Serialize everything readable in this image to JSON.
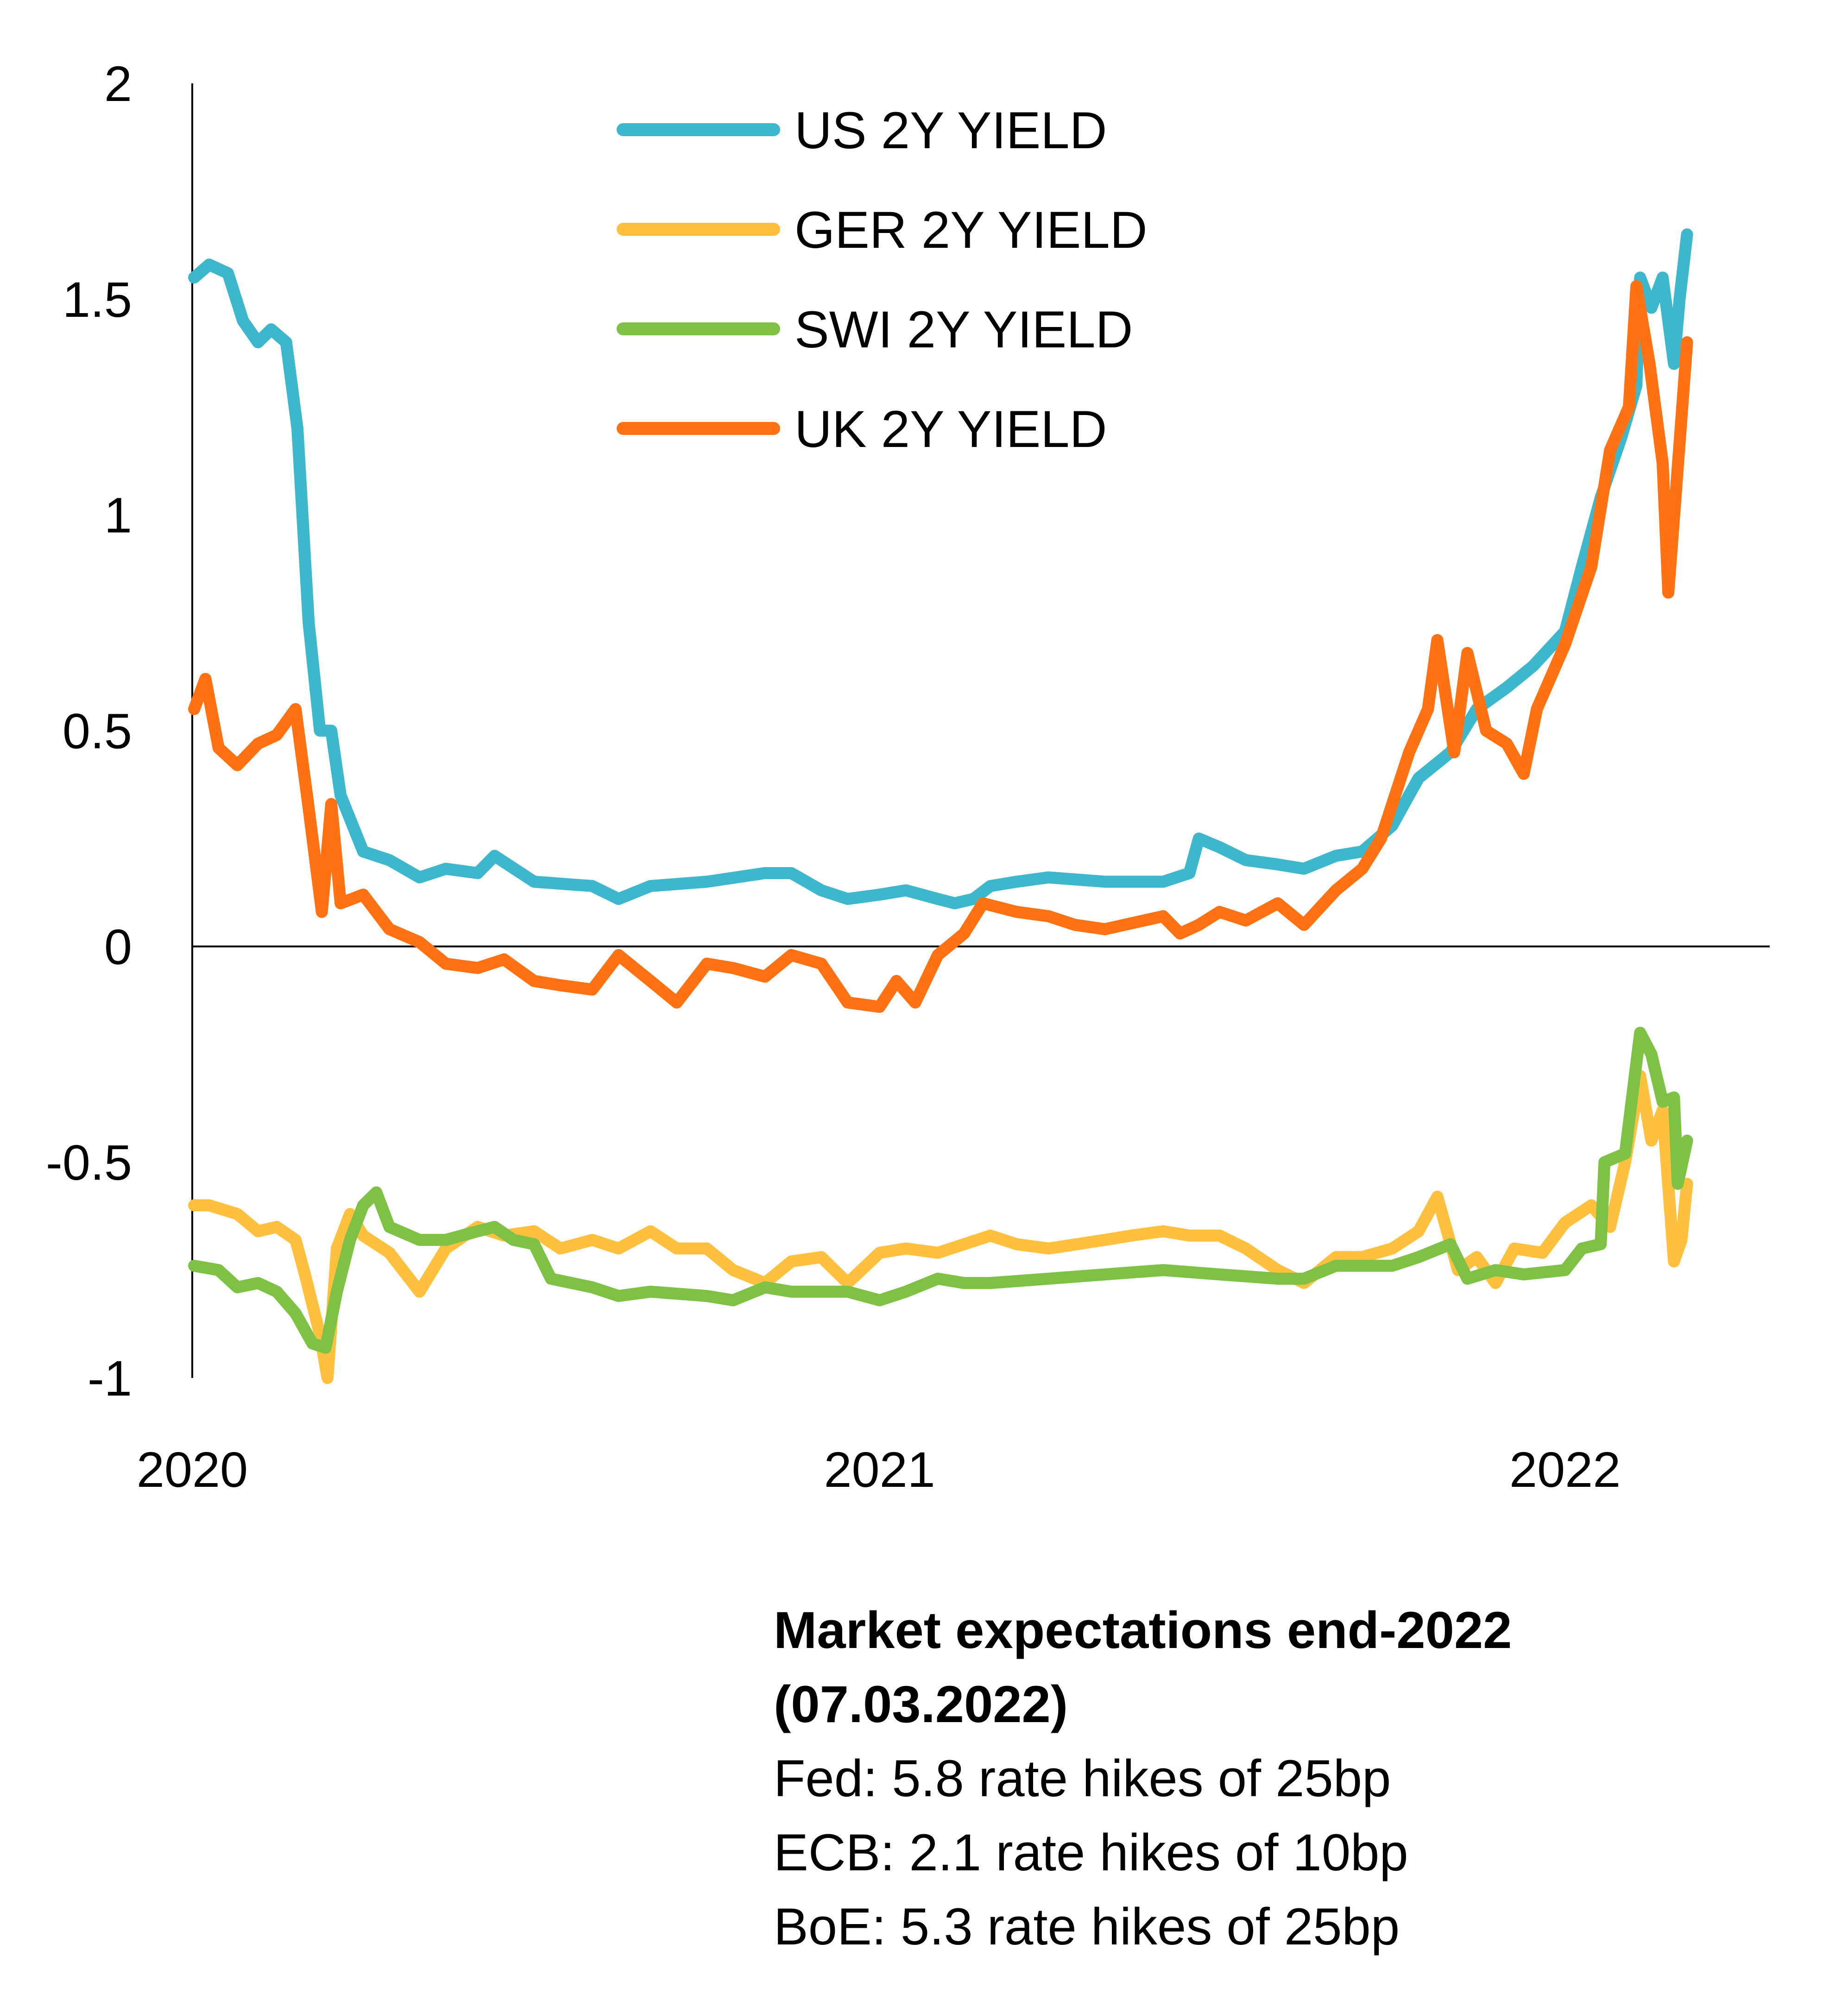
{
  "chart_data": {
    "type": "line",
    "title": "",
    "xlabel": "",
    "ylabel": "",
    "ylim": [
      -1,
      2
    ],
    "xlim": [
      "2020-01-01",
      "2022-04-20"
    ],
    "x_ticks": [
      {
        "label": "2020",
        "date": "2020-01-01"
      },
      {
        "label": "2021",
        "date": "2021-01-01"
      },
      {
        "label": "2022",
        "date": "2022-01-01"
      }
    ],
    "y_ticks": [
      {
        "label": "2",
        "value": 2
      },
      {
        "label": "1.5",
        "value": 1.5
      },
      {
        "label": "1",
        "value": 1
      },
      {
        "label": "0.5",
        "value": 0.5
      },
      {
        "label": "0",
        "value": 0
      },
      {
        "label": "-0.5",
        "value": -0.5
      },
      {
        "label": "-1",
        "value": -1
      }
    ],
    "grid": false,
    "legend_position": "top-center",
    "series": [
      {
        "name": "US 2Y YIELD",
        "color": "#3DB7CB",
        "points": [
          [
            "2020-01-02",
            1.55
          ],
          [
            "2020-01-10",
            1.58
          ],
          [
            "2020-01-20",
            1.56
          ],
          [
            "2020-01-28",
            1.45
          ],
          [
            "2020-02-05",
            1.4
          ],
          [
            "2020-02-12",
            1.43
          ],
          [
            "2020-02-20",
            1.4
          ],
          [
            "2020-02-26",
            1.2
          ],
          [
            "2020-03-03",
            0.75
          ],
          [
            "2020-03-09",
            0.5
          ],
          [
            "2020-03-15",
            0.5
          ],
          [
            "2020-03-20",
            0.35
          ],
          [
            "2020-04-01",
            0.22
          ],
          [
            "2020-04-15",
            0.2
          ],
          [
            "2020-05-01",
            0.16
          ],
          [
            "2020-05-15",
            0.18
          ],
          [
            "2020-06-01",
            0.17
          ],
          [
            "2020-06-10",
            0.21
          ],
          [
            "2020-07-01",
            0.15
          ],
          [
            "2020-08-01",
            0.14
          ],
          [
            "2020-08-15",
            0.11
          ],
          [
            "2020-09-01",
            0.14
          ],
          [
            "2020-10-01",
            0.15
          ],
          [
            "2020-11-01",
            0.17
          ],
          [
            "2020-11-15",
            0.17
          ],
          [
            "2020-12-01",
            0.13
          ],
          [
            "2020-12-15",
            0.11
          ],
          [
            "2021-01-01",
            0.12
          ],
          [
            "2021-01-15",
            0.13
          ],
          [
            "2021-02-01",
            0.11
          ],
          [
            "2021-02-10",
            0.1
          ],
          [
            "2021-02-20",
            0.11
          ],
          [
            "2021-03-01",
            0.14
          ],
          [
            "2021-03-15",
            0.15
          ],
          [
            "2021-04-01",
            0.16
          ],
          [
            "2021-05-01",
            0.15
          ],
          [
            "2021-06-01",
            0.15
          ],
          [
            "2021-06-15",
            0.17
          ],
          [
            "2021-06-20",
            0.25
          ],
          [
            "2021-07-01",
            0.23
          ],
          [
            "2021-07-15",
            0.2
          ],
          [
            "2021-08-01",
            0.19
          ],
          [
            "2021-08-15",
            0.18
          ],
          [
            "2021-09-01",
            0.21
          ],
          [
            "2021-09-15",
            0.22
          ],
          [
            "2021-10-01",
            0.28
          ],
          [
            "2021-10-15",
            0.39
          ],
          [
            "2021-11-01",
            0.45
          ],
          [
            "2021-11-15",
            0.55
          ],
          [
            "2021-12-01",
            0.6
          ],
          [
            "2021-12-15",
            0.65
          ],
          [
            "2022-01-01",
            0.73
          ],
          [
            "2022-01-10",
            0.88
          ],
          [
            "2022-01-20",
            1.04
          ],
          [
            "2022-01-31",
            1.18
          ],
          [
            "2022-02-08",
            1.3
          ],
          [
            "2022-02-10",
            1.55
          ],
          [
            "2022-02-16",
            1.48
          ],
          [
            "2022-02-22",
            1.55
          ],
          [
            "2022-02-28",
            1.35
          ],
          [
            "2022-03-03",
            1.5
          ],
          [
            "2022-03-07",
            1.65
          ]
        ]
      },
      {
        "name": "GER 2Y YIELD",
        "color": "#FFC13D",
        "points": [
          [
            "2020-01-02",
            -0.6
          ],
          [
            "2020-01-10",
            -0.6
          ],
          [
            "2020-01-25",
            -0.62
          ],
          [
            "2020-02-05",
            -0.66
          ],
          [
            "2020-02-15",
            -0.65
          ],
          [
            "2020-02-25",
            -0.68
          ],
          [
            "2020-03-01",
            -0.76
          ],
          [
            "2020-03-09",
            -0.9
          ],
          [
            "2020-03-13",
            -1.0
          ],
          [
            "2020-03-18",
            -0.7
          ],
          [
            "2020-03-25",
            -0.62
          ],
          [
            "2020-04-01",
            -0.67
          ],
          [
            "2020-04-15",
            -0.71
          ],
          [
            "2020-05-01",
            -0.8
          ],
          [
            "2020-05-15",
            -0.7
          ],
          [
            "2020-06-01",
            -0.65
          ],
          [
            "2020-06-15",
            -0.67
          ],
          [
            "2020-07-01",
            -0.66
          ],
          [
            "2020-07-15",
            -0.7
          ],
          [
            "2020-08-01",
            -0.68
          ],
          [
            "2020-08-15",
            -0.7
          ],
          [
            "2020-09-01",
            -0.66
          ],
          [
            "2020-09-15",
            -0.7
          ],
          [
            "2020-10-01",
            -0.7
          ],
          [
            "2020-10-15",
            -0.75
          ],
          [
            "2020-11-01",
            -0.78
          ],
          [
            "2020-11-15",
            -0.73
          ],
          [
            "2020-12-01",
            -0.72
          ],
          [
            "2020-12-15",
            -0.78
          ],
          [
            "2021-01-01",
            -0.71
          ],
          [
            "2021-01-15",
            -0.7
          ],
          [
            "2021-02-01",
            -0.71
          ],
          [
            "2021-02-15",
            -0.69
          ],
          [
            "2021-03-01",
            -0.67
          ],
          [
            "2021-03-15",
            -0.69
          ],
          [
            "2021-04-01",
            -0.7
          ],
          [
            "2021-05-01",
            -0.68
          ],
          [
            "2021-05-15",
            -0.67
          ],
          [
            "2021-06-01",
            -0.66
          ],
          [
            "2021-06-15",
            -0.67
          ],
          [
            "2021-07-01",
            -0.67
          ],
          [
            "2021-07-15",
            -0.7
          ],
          [
            "2021-08-01",
            -0.75
          ],
          [
            "2021-08-15",
            -0.78
          ],
          [
            "2021-09-01",
            -0.72
          ],
          [
            "2021-09-15",
            -0.72
          ],
          [
            "2021-10-01",
            -0.7
          ],
          [
            "2021-10-15",
            -0.66
          ],
          [
            "2021-10-25",
            -0.58
          ],
          [
            "2021-11-05",
            -0.75
          ],
          [
            "2021-11-15",
            -0.72
          ],
          [
            "2021-11-25",
            -0.78
          ],
          [
            "2021-12-05",
            -0.7
          ],
          [
            "2021-12-20",
            -0.71
          ],
          [
            "2022-01-01",
            -0.64
          ],
          [
            "2022-01-15",
            -0.6
          ],
          [
            "2022-01-25",
            -0.65
          ],
          [
            "2022-02-02",
            -0.5
          ],
          [
            "2022-02-10",
            -0.3
          ],
          [
            "2022-02-16",
            -0.45
          ],
          [
            "2022-02-22",
            -0.38
          ],
          [
            "2022-02-28",
            -0.73
          ],
          [
            "2022-03-04",
            -0.68
          ],
          [
            "2022-03-07",
            -0.55
          ]
        ]
      },
      {
        "name": "SWI 2Y YIELD",
        "color": "#7DC244",
        "points": [
          [
            "2020-01-02",
            -0.74
          ],
          [
            "2020-01-15",
            -0.75
          ],
          [
            "2020-01-25",
            -0.79
          ],
          [
            "2020-02-05",
            -0.78
          ],
          [
            "2020-02-15",
            -0.8
          ],
          [
            "2020-02-25",
            -0.85
          ],
          [
            "2020-03-05",
            -0.92
          ],
          [
            "2020-03-12",
            -0.93
          ],
          [
            "2020-03-18",
            -0.8
          ],
          [
            "2020-03-25",
            -0.68
          ],
          [
            "2020-04-01",
            -0.6
          ],
          [
            "2020-04-08",
            -0.57
          ],
          [
            "2020-04-15",
            -0.65
          ],
          [
            "2020-05-01",
            -0.68
          ],
          [
            "2020-05-15",
            -0.68
          ],
          [
            "2020-06-01",
            -0.66
          ],
          [
            "2020-06-10",
            -0.65
          ],
          [
            "2020-06-20",
            -0.68
          ],
          [
            "2020-07-01",
            -0.69
          ],
          [
            "2020-07-10",
            -0.77
          ],
          [
            "2020-08-01",
            -0.79
          ],
          [
            "2020-08-15",
            -0.81
          ],
          [
            "2020-09-01",
            -0.8
          ],
          [
            "2020-10-01",
            -0.81
          ],
          [
            "2020-10-15",
            -0.82
          ],
          [
            "2020-11-01",
            -0.79
          ],
          [
            "2020-11-15",
            -0.8
          ],
          [
            "2020-12-01",
            -0.8
          ],
          [
            "2020-12-15",
            -0.8
          ],
          [
            "2021-01-01",
            -0.82
          ],
          [
            "2021-01-15",
            -0.8
          ],
          [
            "2021-02-01",
            -0.77
          ],
          [
            "2021-02-15",
            -0.78
          ],
          [
            "2021-03-01",
            -0.78
          ],
          [
            "2021-04-01",
            -0.77
          ],
          [
            "2021-05-01",
            -0.76
          ],
          [
            "2021-06-01",
            -0.75
          ],
          [
            "2021-07-01",
            -0.76
          ],
          [
            "2021-08-01",
            -0.77
          ],
          [
            "2021-08-15",
            -0.77
          ],
          [
            "2021-09-01",
            -0.74
          ],
          [
            "2021-10-01",
            -0.74
          ],
          [
            "2021-10-15",
            -0.72
          ],
          [
            "2021-11-01",
            -0.69
          ],
          [
            "2021-11-10",
            -0.77
          ],
          [
            "2021-11-25",
            -0.75
          ],
          [
            "2021-12-10",
            -0.76
          ],
          [
            "2022-01-01",
            -0.75
          ],
          [
            "2022-01-10",
            -0.7
          ],
          [
            "2022-01-20",
            -0.69
          ],
          [
            "2022-01-22",
            -0.5
          ],
          [
            "2022-02-02",
            -0.48
          ],
          [
            "2022-02-10",
            -0.2
          ],
          [
            "2022-02-16",
            -0.25
          ],
          [
            "2022-02-22",
            -0.36
          ],
          [
            "2022-02-28",
            -0.35
          ],
          [
            "2022-03-02",
            -0.55
          ],
          [
            "2022-03-07",
            -0.45
          ]
        ]
      },
      {
        "name": "UK 2Y YIELD",
        "color": "#FF7111",
        "points": [
          [
            "2020-01-02",
            0.55
          ],
          [
            "2020-01-08",
            0.62
          ],
          [
            "2020-01-15",
            0.46
          ],
          [
            "2020-01-25",
            0.42
          ],
          [
            "2020-02-05",
            0.47
          ],
          [
            "2020-02-15",
            0.49
          ],
          [
            "2020-02-25",
            0.55
          ],
          [
            "2020-03-03",
            0.32
          ],
          [
            "2020-03-10",
            0.08
          ],
          [
            "2020-03-15",
            0.33
          ],
          [
            "2020-03-20",
            0.1
          ],
          [
            "2020-04-01",
            0.12
          ],
          [
            "2020-04-15",
            0.04
          ],
          [
            "2020-05-01",
            0.01
          ],
          [
            "2020-05-15",
            -0.04
          ],
          [
            "2020-06-01",
            -0.05
          ],
          [
            "2020-06-15",
            -0.03
          ],
          [
            "2020-07-01",
            -0.08
          ],
          [
            "2020-07-15",
            -0.09
          ],
          [
            "2020-08-01",
            -0.1
          ],
          [
            "2020-08-15",
            -0.02
          ],
          [
            "2020-09-01",
            -0.08
          ],
          [
            "2020-09-15",
            -0.13
          ],
          [
            "2020-10-01",
            -0.04
          ],
          [
            "2020-10-15",
            -0.05
          ],
          [
            "2020-11-01",
            -0.07
          ],
          [
            "2020-11-15",
            -0.02
          ],
          [
            "2020-12-01",
            -0.04
          ],
          [
            "2020-12-15",
            -0.13
          ],
          [
            "2021-01-01",
            -0.14
          ],
          [
            "2021-01-10",
            -0.08
          ],
          [
            "2021-01-20",
            -0.13
          ],
          [
            "2021-02-01",
            -0.02
          ],
          [
            "2021-02-15",
            0.03
          ],
          [
            "2021-02-25",
            0.1
          ],
          [
            "2021-03-15",
            0.08
          ],
          [
            "2021-04-01",
            0.07
          ],
          [
            "2021-04-15",
            0.05
          ],
          [
            "2021-05-01",
            0.04
          ],
          [
            "2021-06-01",
            0.07
          ],
          [
            "2021-06-10",
            0.03
          ],
          [
            "2021-06-20",
            0.05
          ],
          [
            "2021-07-01",
            0.08
          ],
          [
            "2021-07-15",
            0.06
          ],
          [
            "2021-08-01",
            0.1
          ],
          [
            "2021-08-15",
            0.05
          ],
          [
            "2021-09-01",
            0.13
          ],
          [
            "2021-09-15",
            0.18
          ],
          [
            "2021-09-25",
            0.25
          ],
          [
            "2021-10-01",
            0.33
          ],
          [
            "2021-10-10",
            0.45
          ],
          [
            "2021-10-20",
            0.55
          ],
          [
            "2021-10-25",
            0.71
          ],
          [
            "2021-11-03",
            0.45
          ],
          [
            "2021-11-10",
            0.68
          ],
          [
            "2021-11-20",
            0.5
          ],
          [
            "2021-12-01",
            0.47
          ],
          [
            "2021-12-10",
            0.4
          ],
          [
            "2021-12-17",
            0.55
          ],
          [
            "2022-01-01",
            0.7
          ],
          [
            "2022-01-15",
            0.88
          ],
          [
            "2022-01-25",
            1.15
          ],
          [
            "2022-02-04",
            1.25
          ],
          [
            "2022-02-08",
            1.53
          ],
          [
            "2022-02-15",
            1.35
          ],
          [
            "2022-02-22",
            1.12
          ],
          [
            "2022-02-25",
            0.82
          ],
          [
            "2022-03-01",
            1.05
          ],
          [
            "2022-03-07",
            1.4
          ]
        ]
      }
    ]
  },
  "annotation": {
    "heading_line1": "Market expectations end-2022",
    "heading_line2": "(07.03.2022)",
    "lines": [
      "Fed: 5.8 rate hikes of 25bp",
      "ECB: 2.1 rate hikes of 10bp",
      "BoE: 5.3 rate hikes of 25bp"
    ]
  }
}
